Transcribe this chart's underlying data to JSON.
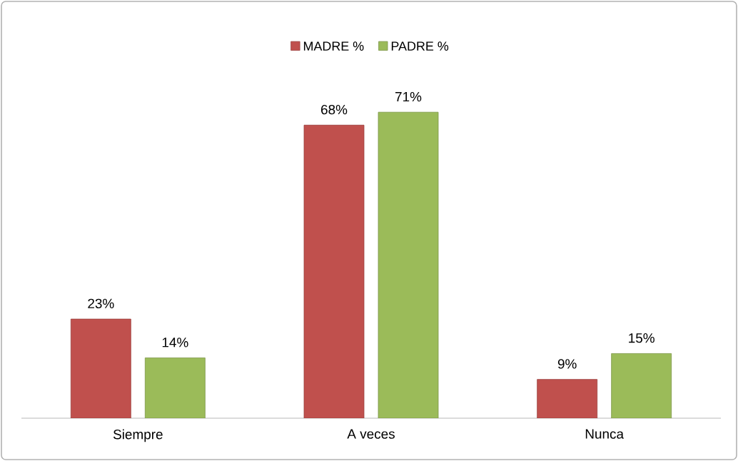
{
  "chart_data": {
    "type": "bar",
    "categories": [
      "Siempre",
      "A veces",
      "Nunca"
    ],
    "series": [
      {
        "name": "MADRE %",
        "color": "#c0504d",
        "values": [
          23,
          68,
          9
        ],
        "value_labels": [
          "23%",
          "68%",
          "9%"
        ]
      },
      {
        "name": "PADRE %",
        "color": "#9bbb59",
        "values": [
          14,
          71,
          15
        ],
        "value_labels": [
          "14%",
          "71%",
          "15%"
        ]
      }
    ],
    "legend": "top"
  }
}
